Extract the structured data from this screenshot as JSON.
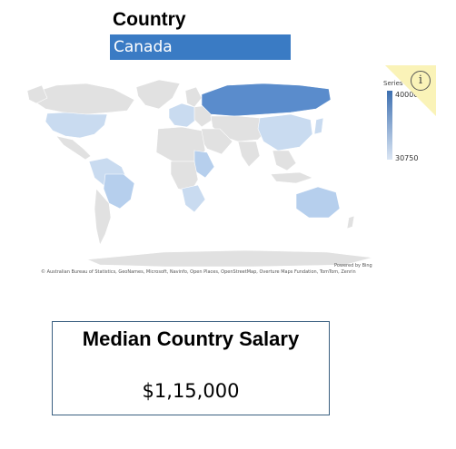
{
  "filter": {
    "title": "Country",
    "selected": "Canada"
  },
  "map": {
    "legend_title": "Series",
    "legend_max": "40000",
    "legend_min": "30750",
    "powered_by": "Powered by Bing",
    "attribution": "© Australian Bureau of Statistics, GeoNames, Microsoft, Navinfo, Open Places, OpenStreetMap, Overture Maps Fundation, TomTom, Zenrin",
    "info_icon": "info-icon",
    "colors": {
      "land": "#e1e1e1",
      "light": "#c9dbf0",
      "medium": "#9fc0e6",
      "dark": "#5a8ccc",
      "selector": "#3a7bc4"
    }
  },
  "salary_card": {
    "title": "Median Country Salary",
    "value": "$1,15,000"
  }
}
